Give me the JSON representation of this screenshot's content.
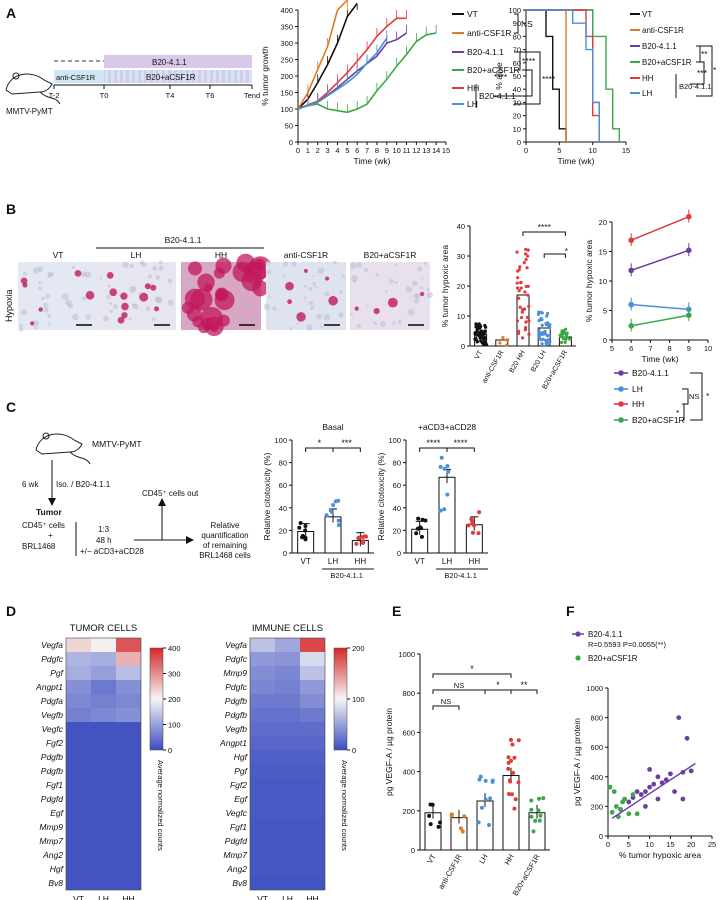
{
  "panels": {
    "A": "A",
    "B": "B",
    "C": "C",
    "D": "D",
    "E": "E",
    "F": "F"
  },
  "colors": {
    "VT": "#111111",
    "antiCSF1R": "#e07b22",
    "B20": "#6b3fa0",
    "B20aCSF1R": "#3da84a",
    "HH": "#e03c3c",
    "LH": "#4a90d9",
    "B20bar": "#b79ad6",
    "aCSF1Rbar": "#8fd0e6"
  },
  "schemeA": {
    "mouse_label": "MMTV-PyMT",
    "bar_top": "B20-4.1.1",
    "bar_left": "anti-CSF1R",
    "bar_bottom": "B20+aCSF1R",
    "ticks": [
      "T-2",
      "T0",
      "T4",
      "T6",
      "Tend"
    ]
  },
  "growth": {
    "ylabel": "% tumor growth",
    "xlabel": "Time (wk)",
    "yticks": [
      "0",
      "50",
      "100",
      "150",
      "200",
      "250",
      "300",
      "350",
      "400"
    ],
    "xticks": [
      "0",
      "1",
      "2",
      "3",
      "4",
      "5",
      "6",
      "7",
      "8",
      "9",
      "10",
      "11",
      "12",
      "13",
      "14",
      "15"
    ],
    "legend": [
      "VT",
      "anti-CSF1R",
      "B20-4.1.1",
      "B20+aCSF1R",
      "HH",
      "LH"
    ],
    "sig": {
      "ns": "NS",
      "s1": "****",
      "s2": "****",
      "s3": "****"
    },
    "bracket_label": "B20-4.1.1"
  },
  "survival": {
    "ylabel": "% alive",
    "xlabel": "Time (wk)",
    "yticks": [
      "0",
      "10",
      "20",
      "30",
      "40",
      "50",
      "60",
      "70",
      "80",
      "90",
      "100"
    ],
    "xticks": [
      "0",
      "5",
      "10",
      "15"
    ],
    "legend": [
      "VT",
      "anti-CSF1R",
      "B20-4.1.1",
      "B20+aCSF1R",
      "HH",
      "LH"
    ],
    "sig": {
      "a": "**",
      "b": "***",
      "c": "*"
    },
    "bracket_label": "B20-4.1.1"
  },
  "micro": {
    "row_label": "Hypoxia",
    "group_label": "B20-4.1.1",
    "titles": [
      "VT",
      "LH",
      "HH",
      "anti-CSF1R",
      "B20+aCSF1R"
    ]
  },
  "hypoxBar": {
    "ylabel": "% tumor hypoxic area",
    "yticks": [
      "0",
      "10",
      "20",
      "30",
      "40"
    ],
    "cats": [
      "VT",
      "anti-CSF1R",
      "B20 HH",
      "B20 LH",
      "B20+aCSF1R"
    ],
    "sig": {
      "a": "****",
      "b": "*"
    }
  },
  "hypoxLine": {
    "ylabel": "% tumor hypoxic area",
    "xlabel": "Time (wk)",
    "yticks": [
      "0",
      "5",
      "10",
      "15",
      "20"
    ],
    "xticks": [
      "5",
      "6",
      "7",
      "8",
      "9",
      "10"
    ],
    "legend": [
      "B20-4.1.1",
      "LH",
      "HH",
      "B20+aCSF1R"
    ],
    "sig": {
      "a": "NS",
      "b": "*",
      "c": "*"
    }
  },
  "schemeC": {
    "mouse": "MMTV-PyMT",
    "treat": "Iso. / B20-4.1.1",
    "time": "6 wk",
    "tumor": "Tumor",
    "cd45": "CD45⁺ cells",
    "plus": "+",
    "brl": "BRL1468",
    "ratio": "1:3",
    "hours": "48 h",
    "stim": "+/− aCD3+aCD28",
    "out": "CD45⁺ cells out",
    "quant1": "Relative",
    "quant2": "quantification",
    "quant3": "of remaining",
    "quant4": "BRL1468 cells"
  },
  "cytoBasal": {
    "title": "Basal",
    "ylabel": "Relative citotoxicity (%)",
    "yticks": [
      "0",
      "20",
      "40",
      "60",
      "80",
      "100"
    ],
    "cats": [
      "VT",
      "LH",
      "HH"
    ],
    "group": "B20-4.1.1",
    "sig": {
      "a": "*",
      "b": "***"
    }
  },
  "cytoStim": {
    "title": "+aCD3+aCD28",
    "ylabel": "Relative citotoxicity (%)",
    "yticks": [
      "0",
      "20",
      "40",
      "60",
      "80",
      "100"
    ],
    "cats": [
      "VT",
      "LH",
      "HH"
    ],
    "group": "B20-4.1.1",
    "sig": {
      "a": "****",
      "b": "****"
    }
  },
  "heatTumor": {
    "title": "TUMOR CELLS",
    "genes": [
      "Vegfa",
      "Pdgfc",
      "Pgf",
      "Angpt1",
      "Pdgfa",
      "Vegfb",
      "Vegfc",
      "Fgf2",
      "Pdgfb",
      "Pdgfb",
      "Fgf1",
      "Pdgfd",
      "Egf",
      "Mmp9",
      "Mmp7",
      "Ang2",
      "Hgf",
      "Bv8"
    ],
    "cols": [
      "VT",
      "LH",
      "HH"
    ],
    "scale": [
      "400",
      "300",
      "200",
      "100",
      "0"
    ],
    "scale_label": "Average normalized counts"
  },
  "heatImmune": {
    "title": "IMMUNE CELLS",
    "genes": [
      "Vegfa",
      "Pdgfc",
      "Mmp9",
      "Pdgfc",
      "Pdgfb",
      "Pdgfb",
      "Vegfb",
      "Angpt1",
      "Hgf",
      "Pgf",
      "Fgf2",
      "Egf",
      "Vegfc",
      "Fgf1",
      "Pdgfd",
      "Mmp7",
      "Ang2",
      "Bv8"
    ],
    "cols": [
      "VT",
      "LH",
      "HH"
    ],
    "scale": [
      "200",
      "100",
      "0"
    ],
    "scale_label": "Average normalized counts"
  },
  "vegfBar": {
    "ylabel": "pg VEGF-A / µg protein",
    "yticks": [
      "0",
      "200",
      "400",
      "600",
      "800",
      "1000"
    ],
    "cats": [
      "VT",
      "anti-CSF1R",
      "LH",
      "HH",
      "B20+aCSF1R"
    ],
    "sig": {
      "a": "*",
      "b": "NS",
      "c": "NS",
      "d": "*",
      "e": "**"
    }
  },
  "scatterF": {
    "ylabel": "pg VEGF-A / µg protein",
    "xlabel": "% tumor hypoxic area",
    "yticks": [
      "0",
      "200",
      "400",
      "600",
      "800",
      "1000"
    ],
    "xticks": [
      "0",
      "5",
      "10",
      "15",
      "20",
      "25"
    ],
    "legend1": "B20-4.1.1",
    "stats": "R=0.5593 P=0.0055(**)",
    "legend2": "B20+aCSF1R"
  },
  "chart_data": [
    {
      "type": "line",
      "title": "",
      "xlabel": "Time (wk)",
      "ylabel": "% tumor growth",
      "xlim": [
        0,
        15
      ],
      "ylim": [
        0,
        400
      ],
      "series": [
        {
          "name": "VT",
          "x": [
            0,
            1,
            2,
            3,
            4,
            5,
            6
          ],
          "y": [
            100,
            130,
            180,
            235,
            300,
            380,
            420
          ]
        },
        {
          "name": "anti-CSF1R",
          "x": [
            0,
            1,
            2,
            3,
            4,
            5
          ],
          "y": [
            100,
            150,
            220,
            290,
            400,
            430
          ]
        },
        {
          "name": "B20-4.1.1",
          "x": [
            0,
            1,
            2,
            3,
            4,
            5,
            6,
            7,
            8,
            9,
            10,
            11
          ],
          "y": [
            100,
            112,
            122,
            142,
            165,
            190,
            215,
            238,
            260,
            300,
            310,
            330
          ]
        },
        {
          "name": "B20+aCSF1R",
          "x": [
            0,
            1,
            2,
            3,
            4,
            5,
            6,
            7,
            8,
            9,
            10,
            11,
            12,
            13,
            14
          ],
          "y": [
            100,
            110,
            115,
            100,
            95,
            90,
            100,
            115,
            155,
            190,
            230,
            265,
            305,
            325,
            330
          ]
        },
        {
          "name": "HH",
          "x": [
            0,
            1,
            2,
            3,
            4,
            5,
            6,
            7,
            8,
            9,
            10,
            11
          ],
          "y": [
            100,
            112,
            124,
            150,
            180,
            210,
            245,
            280,
            320,
            350,
            375,
            375
          ]
        },
        {
          "name": "LH",
          "x": [
            0,
            1,
            2,
            3,
            4,
            5,
            6,
            7,
            8,
            9
          ],
          "y": [
            100,
            110,
            120,
            140,
            160,
            180,
            205,
            240,
            270,
            315
          ]
        }
      ]
    },
    {
      "type": "line",
      "title": "",
      "xlabel": "Time (wk)",
      "ylabel": "% alive",
      "xlim": [
        0,
        15
      ],
      "ylim": [
        0,
        100
      ],
      "series": [
        {
          "name": "VT",
          "x": [
            0,
            3,
            3,
            4,
            4,
            5,
            5,
            6,
            6
          ],
          "y": [
            100,
            100,
            80,
            80,
            40,
            40,
            10,
            10,
            0
          ]
        },
        {
          "name": "anti-CSF1R",
          "x": [
            0,
            6,
            6
          ],
          "y": [
            100,
            100,
            0
          ]
        },
        {
          "name": "B20-4.1.1",
          "x": [
            0,
            10,
            10,
            11,
            11
          ],
          "y": [
            100,
            100,
            30,
            30,
            0
          ]
        },
        {
          "name": "B20+aCSF1R",
          "x": [
            0,
            10,
            10,
            12,
            12,
            13,
            13,
            14,
            14
          ],
          "y": [
            100,
            100,
            80,
            80,
            40,
            40,
            10,
            10,
            0
          ]
        },
        {
          "name": "HH",
          "x": [
            0,
            9,
            9,
            10,
            10,
            11,
            11
          ],
          "y": [
            100,
            100,
            80,
            80,
            20,
            20,
            0
          ]
        },
        {
          "name": "LH",
          "x": [
            0,
            7,
            7,
            9,
            9,
            10,
            10,
            11,
            11
          ],
          "y": [
            100,
            100,
            90,
            90,
            70,
            70,
            30,
            30,
            0
          ]
        }
      ]
    },
    {
      "type": "bar",
      "title": "",
      "ylabel": "% tumor hypoxic area",
      "ylim": [
        0,
        40
      ],
      "categories": [
        "VT",
        "anti-CSF1R",
        "B20 HH",
        "B20 LH",
        "B20+aCSF1R"
      ],
      "values": [
        4,
        2,
        17,
        6,
        3
      ]
    },
    {
      "type": "line",
      "title": "",
      "xlabel": "Time (wk)",
      "ylabel": "% tumor hypoxic area",
      "xlim": [
        5,
        10
      ],
      "ylim": [
        0,
        20
      ],
      "series": [
        {
          "name": "B20-4.1.1",
          "x": [
            6,
            9
          ],
          "y": [
            11.8,
            15.2
          ]
        },
        {
          "name": "LH",
          "x": [
            6,
            9
          ],
          "y": [
            6.0,
            5.2
          ]
        },
        {
          "name": "HH",
          "x": [
            6,
            9
          ],
          "y": [
            16.9,
            20.9
          ]
        },
        {
          "name": "B20+aCSF1R",
          "x": [
            6,
            9
          ],
          "y": [
            2.4,
            4.2
          ]
        }
      ]
    },
    {
      "type": "bar",
      "title": "Basal",
      "ylabel": "Relative citotoxicity (%)",
      "ylim": [
        0,
        100
      ],
      "categories": [
        "VT",
        "LH",
        "HH"
      ],
      "values": [
        19,
        32,
        11
      ]
    },
    {
      "type": "bar",
      "title": "+aCD3+aCD28",
      "ylabel": "Relative citotoxicity (%)",
      "ylim": [
        0,
        100
      ],
      "categories": [
        "VT",
        "LH",
        "HH"
      ],
      "values": [
        21,
        67,
        25
      ]
    },
    {
      "type": "heatmap",
      "title": "TUMOR CELLS",
      "rows": [
        "Vegfa",
        "Pdgfc",
        "Pgf",
        "Angpt1",
        "Pdgfa",
        "Vegfb",
        "Vegfc",
        "Fgf2",
        "Pdgfb",
        "Pdgfb",
        "Fgf1",
        "Pdgfd",
        "Egf",
        "Mmp9",
        "Mmp7",
        "Ang2",
        "Hgf",
        "Bv8"
      ],
      "columns": [
        "VT",
        "LH",
        "HH"
      ],
      "values": [
        [
          260,
          230,
          400
        ],
        [
          140,
          130,
          300
        ],
        [
          130,
          110,
          150
        ],
        [
          90,
          60,
          90
        ],
        [
          80,
          70,
          80
        ],
        [
          70,
          80,
          90
        ],
        [
          10,
          10,
          10
        ],
        [
          10,
          10,
          10
        ],
        [
          10,
          10,
          10
        ],
        [
          10,
          10,
          10
        ],
        [
          10,
          10,
          10
        ],
        [
          10,
          10,
          10
        ],
        [
          10,
          10,
          10
        ],
        [
          10,
          10,
          10
        ],
        [
          10,
          10,
          10
        ],
        [
          10,
          10,
          10
        ],
        [
          10,
          10,
          10
        ],
        [
          10,
          10,
          10
        ]
      ]
    },
    {
      "type": "heatmap",
      "title": "IMMUNE CELLS",
      "rows": [
        "Vegfa",
        "Pdgfc",
        "Mmp9",
        "Pdgfc",
        "Pdgfb",
        "Pdgfb",
        "Vegfb",
        "Angpt1",
        "Hgf",
        "Pgf",
        "Fgf2",
        "Egf",
        "Vegfc",
        "Fgf1",
        "Pdgfd",
        "Mmp7",
        "Ang2",
        "Bv8"
      ],
      "columns": [
        "VT",
        "LH",
        "HH"
      ],
      "values": [
        [
          90,
          70,
          240
        ],
        [
          60,
          55,
          110
        ],
        [
          50,
          45,
          90
        ],
        [
          45,
          40,
          60
        ],
        [
          35,
          35,
          50
        ],
        [
          30,
          30,
          35
        ],
        [
          25,
          25,
          25
        ],
        [
          20,
          20,
          20
        ],
        [
          15,
          15,
          15
        ],
        [
          12,
          12,
          12
        ],
        [
          10,
          10,
          10
        ],
        [
          10,
          10,
          10
        ],
        [
          10,
          10,
          10
        ],
        [
          8,
          8,
          8
        ],
        [
          8,
          8,
          8
        ],
        [
          8,
          8,
          8
        ],
        [
          8,
          8,
          8
        ],
        [
          5,
          5,
          5
        ]
      ]
    },
    {
      "type": "bar",
      "title": "",
      "ylabel": "pg VEGF-A / µg protein",
      "ylim": [
        0,
        1000
      ],
      "categories": [
        "VT",
        "anti-CSF1R",
        "LH",
        "HH",
        "B20+aCSF1R"
      ],
      "values": [
        190,
        165,
        250,
        380,
        190
      ]
    },
    {
      "type": "scatter",
      "title": "",
      "xlabel": "% tumor hypoxic area",
      "ylabel": "pg VEGF-A / µg protein",
      "xlim": [
        0,
        25
      ],
      "ylim": [
        0,
        1000
      ],
      "series": [
        {
          "name": "B20-4.1.1",
          "x": [
            3,
            5,
            6,
            7,
            8,
            9,
            10,
            10,
            11,
            12,
            13,
            14,
            15,
            16,
            17,
            18,
            18,
            19,
            20,
            9,
            12
          ],
          "y": [
            180,
            230,
            260,
            300,
            280,
            300,
            330,
            450,
            350,
            400,
            360,
            380,
            420,
            300,
            800,
            250,
            430,
            660,
            440,
            200,
            250
          ]
        },
        {
          "name": "B20+aCSF1R",
          "x": [
            0.5,
            1,
            1.5,
            2,
            2.5,
            3,
            3.5,
            4,
            5,
            6,
            7
          ],
          "y": [
            330,
            160,
            300,
            200,
            130,
            180,
            230,
            250,
            150,
            280,
            150
          ]
        }
      ]
    }
  ]
}
